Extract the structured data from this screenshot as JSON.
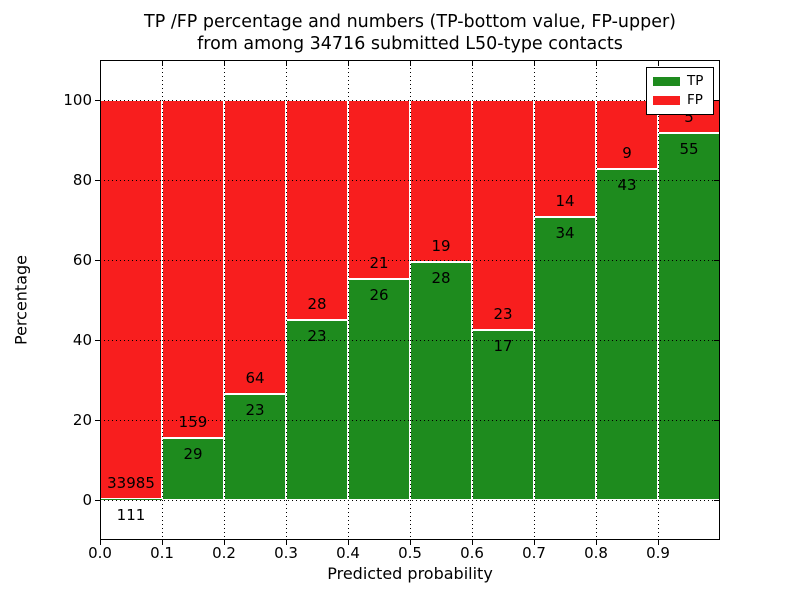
{
  "chart_data": {
    "type": "bar",
    "stacked": true,
    "normalized": "percent",
    "title_lines": [
      "TP /FP percentage and numbers (TP-bottom value, FP-upper)",
      "from among 34716 submitted L50-type contacts"
    ],
    "xlabel": "Predicted probability",
    "ylabel": "Percentage",
    "total_submitted": 34716,
    "bin_edges": [
      0.0,
      0.1,
      0.2,
      0.3,
      0.4,
      0.5,
      0.6,
      0.7,
      0.8,
      0.9,
      1.0
    ],
    "series": [
      {
        "name": "TP",
        "color": "#1e8b1e",
        "label_position": "bottom",
        "counts": [
          111,
          29,
          23,
          23,
          26,
          28,
          17,
          34,
          43,
          55
        ]
      },
      {
        "name": "FP",
        "color": "#f81e1e",
        "label_position": "upper",
        "counts": [
          33985,
          159,
          64,
          28,
          21,
          19,
          23,
          14,
          9,
          5
        ]
      }
    ],
    "tp_percentages": [
      0.33,
      15.43,
      26.44,
      45.1,
      55.32,
      59.57,
      42.5,
      70.83,
      82.69,
      91.67
    ],
    "xlim": [
      0.0,
      1.0
    ],
    "ylim": [
      -10,
      110
    ],
    "xticks": [
      {
        "value": 0.0,
        "label": "0.0"
      },
      {
        "value": 0.1,
        "label": "0.1"
      },
      {
        "value": 0.2,
        "label": "0.2"
      },
      {
        "value": 0.3,
        "label": "0.3"
      },
      {
        "value": 0.4,
        "label": "0.4"
      },
      {
        "value": 0.5,
        "label": "0.5"
      },
      {
        "value": 0.6,
        "label": "0.6"
      },
      {
        "value": 0.7,
        "label": "0.7"
      },
      {
        "value": 0.8,
        "label": "0.8"
      },
      {
        "value": 0.9,
        "label": "0.9"
      }
    ],
    "yticks": [
      {
        "value": 0,
        "label": "0"
      },
      {
        "value": 20,
        "label": "20"
      },
      {
        "value": 40,
        "label": "40"
      },
      {
        "value": 60,
        "label": "60"
      },
      {
        "value": 80,
        "label": "80"
      },
      {
        "value": 100,
        "label": "100"
      }
    ],
    "grid": "dotted",
    "legend": {
      "position": "upper right",
      "entries": [
        {
          "label": "TP",
          "color": "#1e8b1e"
        },
        {
          "label": "FP",
          "color": "#f81e1e"
        }
      ]
    }
  }
}
